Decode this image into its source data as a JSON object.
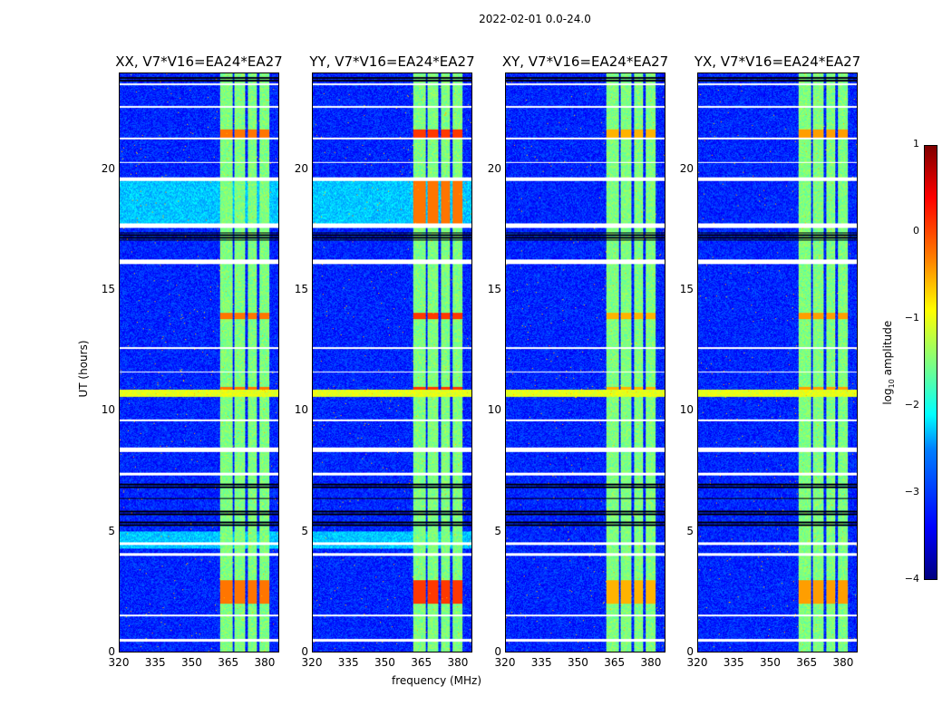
{
  "chart_data": {
    "type": "heatmap",
    "title": "2022-02-01 0.0-24.0",
    "xlabel": "frequency (MHz)",
    "ylabel": "UT (hours)",
    "xlim": [
      320,
      386
    ],
    "ylim": [
      0,
      24
    ],
    "xticks": [
      "320",
      "335",
      "350",
      "365",
      "380"
    ],
    "xtick_values": [
      320,
      335,
      350,
      365,
      380
    ],
    "yticks": [
      "0",
      "5",
      "10",
      "15",
      "20"
    ],
    "ytick_values": [
      0,
      5,
      10,
      15,
      20
    ],
    "panels": [
      {
        "title": "XX, V7*V16=EA24*EA27",
        "bright_bands": [
          -0.6,
          -0.5
        ]
      },
      {
        "title": "YY, V7*V16=EA24*EA27",
        "bright_bands": [
          -0.3,
          -0.2
        ]
      },
      {
        "title": "XY, V7*V16=EA24*EA27",
        "bright_bands": [
          -0.9,
          -0.8
        ]
      },
      {
        "title": "YX, V7*V16=EA24*EA27",
        "bright_bands": [
          -0.8,
          -0.7
        ]
      }
    ],
    "background_level": -3.2,
    "rfi_channels_mhz": [
      [
        361.6,
        366.9
      ],
      [
        367.6,
        372.1
      ],
      [
        373.3,
        377.0
      ],
      [
        377.8,
        381.9
      ]
    ],
    "flagged_hours": [
      [
        23.55,
        23.6
      ],
      [
        22.6,
        22.65
      ],
      [
        21.3,
        21.35
      ],
      [
        20.3,
        20.35
      ],
      [
        19.55,
        19.7
      ],
      [
        17.6,
        17.8
      ],
      [
        16.1,
        16.3
      ],
      [
        12.6,
        12.65
      ],
      [
        11.6,
        11.65
      ],
      [
        9.6,
        9.65
      ],
      [
        8.3,
        8.5
      ],
      [
        7.35,
        7.45
      ],
      [
        4.45,
        4.55
      ],
      [
        4.0,
        4.1
      ],
      [
        1.5,
        1.55
      ],
      [
        0.45,
        0.55
      ]
    ],
    "dark_hours": [
      [
        23.7,
        23.85
      ],
      [
        17.1,
        17.4
      ],
      [
        5.2,
        5.4
      ],
      [
        5.7,
        5.9
      ],
      [
        6.3,
        6.4
      ],
      [
        6.8,
        7.0
      ]
    ],
    "broadband_hours": [
      [
        10.6,
        10.9
      ]
    ],
    "colorbar": {
      "label": "log10 amplitude",
      "range": [
        -4,
        1
      ],
      "ticks": [
        "1",
        "0",
        "−1",
        "−2",
        "−3",
        "−4"
      ],
      "tick_values": [
        1,
        0,
        -1,
        -2,
        -3,
        -4
      ]
    }
  }
}
